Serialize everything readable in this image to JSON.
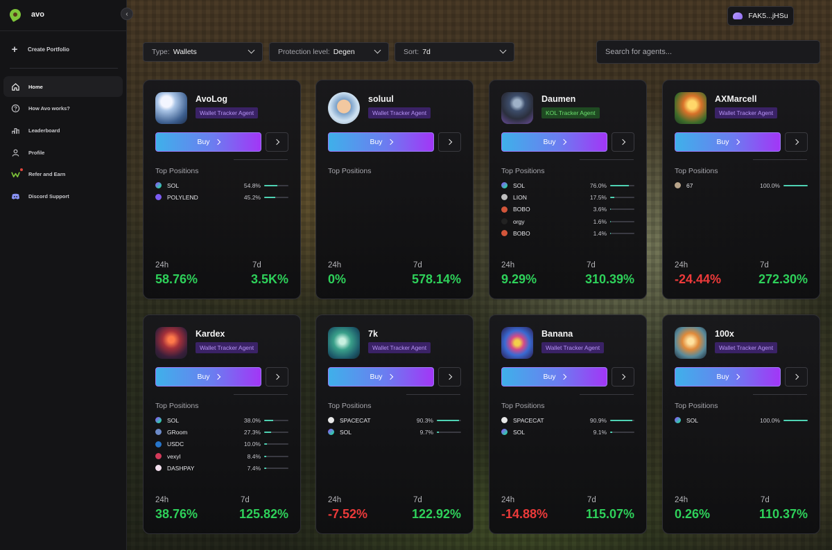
{
  "brand": {
    "name": "avo"
  },
  "sidebar": {
    "create_portfolio": "Create Portfolio",
    "items": [
      {
        "label": "Home",
        "icon": "home-icon"
      },
      {
        "label": "How Avo works?",
        "icon": "help-icon"
      },
      {
        "label": "Leaderboard",
        "icon": "leaderboard-icon"
      },
      {
        "label": "Profile",
        "icon": "user-icon"
      },
      {
        "label": "Refer and Earn",
        "icon": "refer-icon"
      },
      {
        "label": "Discord Support",
        "icon": "discord-icon"
      }
    ]
  },
  "wallet": {
    "address": "FAK5...jHSu"
  },
  "filters": {
    "type": {
      "label": "Type:",
      "value": "Wallets"
    },
    "protection": {
      "label": "Protection level:",
      "value": "Degen"
    },
    "sort": {
      "label": "Sort:",
      "value": "7d"
    }
  },
  "search": {
    "placeholder": "Search for agents..."
  },
  "labels": {
    "buy": "Buy",
    "top_positions": "Top Positions",
    "h24": "24h",
    "d7": "7d"
  },
  "colors": {
    "accent_positive": "#2ed15a",
    "accent_negative": "#ec3a3a",
    "bar_fill": "#4fd3b4"
  },
  "agents": [
    {
      "name": "AvoLog",
      "tag": "Wallet Tracker Agent",
      "tag_type": "wallet",
      "change_24h": "58.76%",
      "change_7d": "3.5K%",
      "sign_24h": "pos",
      "sign_7d": "pos",
      "positions": [
        {
          "token": "SOL",
          "pct": "54.8%",
          "share": 54.8,
          "icon": "sol-icon"
        },
        {
          "token": "POLYLEND",
          "pct": "45.2%",
          "share": 45.2,
          "icon": "polylend-icon"
        }
      ]
    },
    {
      "name": "soluul",
      "tag": "Wallet Tracker Agent",
      "tag_type": "wallet",
      "change_24h": "0%",
      "change_7d": "578.14%",
      "sign_24h": "pos",
      "sign_7d": "pos",
      "positions": []
    },
    {
      "name": "Daumen",
      "tag": "KOL Tracker Agent",
      "tag_type": "kol",
      "change_24h": "9.29%",
      "change_7d": "310.39%",
      "sign_24h": "pos",
      "sign_7d": "pos",
      "positions": [
        {
          "token": "SOL",
          "pct": "76.0%",
          "share": 76.0,
          "icon": "sol-icon"
        },
        {
          "token": "LION",
          "pct": "17.5%",
          "share": 17.5,
          "icon": "lion-icon"
        },
        {
          "token": "BOBO",
          "pct": "3.6%",
          "share": 3.6,
          "icon": "bobo-icon"
        },
        {
          "token": "orgy",
          "pct": "1.6%",
          "share": 1.6,
          "icon": "orgy-icon"
        },
        {
          "token": "BOBO",
          "pct": "1.4%",
          "share": 1.4,
          "icon": "bobo-icon"
        }
      ]
    },
    {
      "name": "AXMarcell",
      "tag": "Wallet Tracker Agent",
      "tag_type": "wallet",
      "change_24h": "-24.44%",
      "change_7d": "272.30%",
      "sign_24h": "neg",
      "sign_7d": "pos",
      "positions": [
        {
          "token": "67",
          "pct": "100.0%",
          "share": 100.0,
          "icon": "token-67-icon"
        }
      ]
    },
    {
      "name": "Kardex",
      "tag": "Wallet Tracker Agent",
      "tag_type": "wallet",
      "change_24h": "38.76%",
      "change_7d": "125.82%",
      "sign_24h": "pos",
      "sign_7d": "pos",
      "positions": [
        {
          "token": "SOL",
          "pct": "38.0%",
          "share": 38.0,
          "icon": "sol-icon"
        },
        {
          "token": "GRoom",
          "pct": "27.3%",
          "share": 27.3,
          "icon": "groom-icon"
        },
        {
          "token": "USDC",
          "pct": "10.0%",
          "share": 10.0,
          "icon": "usdc-icon"
        },
        {
          "token": "vexyl",
          "pct": "8.4%",
          "share": 8.4,
          "icon": "vexyl-icon"
        },
        {
          "token": "DASHPAY",
          "pct": "7.4%",
          "share": 7.4,
          "icon": "dashpay-icon"
        }
      ]
    },
    {
      "name": "7k",
      "tag": "Wallet Tracker Agent",
      "tag_type": "wallet",
      "change_24h": "-7.52%",
      "change_7d": "122.92%",
      "sign_24h": "neg",
      "sign_7d": "pos",
      "positions": [
        {
          "token": "SPACECAT",
          "pct": "90.3%",
          "share": 90.3,
          "icon": "spacecat-icon"
        },
        {
          "token": "SOL",
          "pct": "9.7%",
          "share": 9.7,
          "icon": "sol-icon"
        }
      ]
    },
    {
      "name": "Banana",
      "tag": "Wallet Tracker Agent",
      "tag_type": "wallet",
      "change_24h": "-14.88%",
      "change_7d": "115.07%",
      "sign_24h": "neg",
      "sign_7d": "pos",
      "positions": [
        {
          "token": "SPACECAT",
          "pct": "90.9%",
          "share": 90.9,
          "icon": "spacecat-icon"
        },
        {
          "token": "SOL",
          "pct": "9.1%",
          "share": 9.1,
          "icon": "sol-icon"
        }
      ]
    },
    {
      "name": "100x",
      "tag": "Wallet Tracker Agent",
      "tag_type": "wallet",
      "change_24h": "0.26%",
      "change_7d": "110.37%",
      "sign_24h": "pos",
      "sign_7d": "pos",
      "positions": [
        {
          "token": "SOL",
          "pct": "100.0%",
          "share": 100.0,
          "icon": "sol-icon"
        }
      ]
    }
  ]
}
